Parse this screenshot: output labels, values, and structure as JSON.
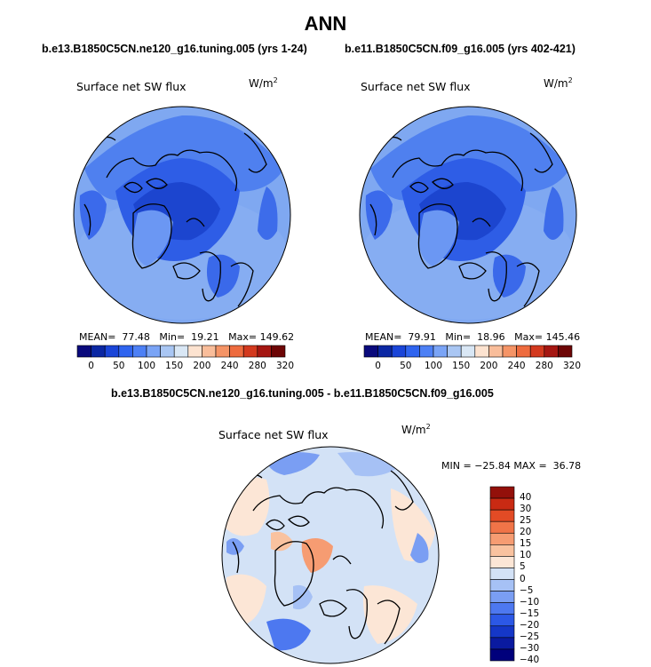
{
  "title": "ANN",
  "colors": {
    "abs_scale": [
      "#0a0a7c",
      "#0b27a3",
      "#1a45d8",
      "#2f64ef",
      "#4d80f5",
      "#7aa4f6",
      "#a9c6f3",
      "#d9e7f5",
      "#fde3d0",
      "#f9bd9a",
      "#f59466",
      "#ee6b3e",
      "#d3391e",
      "#a51611",
      "#6d0505"
    ],
    "diff_scale": [
      "#00007c",
      "#0a1aa0",
      "#1537c8",
      "#2c58e6",
      "#4d78f0",
      "#7a9ef3",
      "#a6c1f5",
      "#d3e2f6",
      "#fce6d6",
      "#f9c29f",
      "#f69c72",
      "#f07448",
      "#e24b25",
      "#c92a13",
      "#93100a"
    ],
    "ocean_abs": "#7fa8f1",
    "coast": "#000000"
  },
  "panels": {
    "left": {
      "case": "b.e13.B1850C5CN.ne120_g16.tuning.005 (yrs 1-24)",
      "label": "Surface net SW flux",
      "units": "W/m",
      "units_exp": "2",
      "mean_label": "MEAN=",
      "mean": "77.48",
      "min_label": "Min=",
      "min": "19.21",
      "max_label": "Max=",
      "max": "149.62"
    },
    "right": {
      "case": "b.e11.B1850C5CN.f09_g16.005 (yrs 402-421)",
      "label": "Surface net SW flux",
      "units": "W/m",
      "units_exp": "2",
      "mean_label": "MEAN=",
      "mean": "79.91",
      "min_label": "Min=",
      "min": "18.96",
      "max_label": "Max=",
      "max": "145.46"
    },
    "diff": {
      "case": "b.e13.B1850C5CN.ne120_g16.tuning.005 - b.e11.B1850C5CN.f09_g16.005",
      "label": "Surface net SW flux",
      "units": "W/m",
      "units_exp": "2",
      "min_label": "MIN =",
      "min": "−25.84",
      "max_label": "MAX =",
      "max": "36.78"
    }
  },
  "chart_data": [
    {
      "type": "heatmap",
      "projection": "polar-stereographic-north",
      "title": "Surface net SW flux",
      "subtitle": "b.e13.B1850C5CN.ne120_g16.tuning.005 (yrs 1-24)",
      "units": "W/m2",
      "stats": {
        "mean": 77.48,
        "min": 19.21,
        "max": 149.62
      },
      "colorbar_ticks": [
        "0",
        "50",
        "100",
        "150",
        "200",
        "240",
        "280",
        "320"
      ]
    },
    {
      "type": "heatmap",
      "projection": "polar-stereographic-north",
      "title": "Surface net SW flux",
      "subtitle": "b.e11.B1850C5CN.f09_g16.005 (yrs 402-421)",
      "units": "W/m2",
      "stats": {
        "mean": 79.91,
        "min": 18.96,
        "max": 145.46
      },
      "colorbar_ticks": [
        "0",
        "50",
        "100",
        "150",
        "200",
        "240",
        "280",
        "320"
      ]
    },
    {
      "type": "heatmap",
      "projection": "polar-stereographic-north",
      "title": "Surface net SW flux",
      "subtitle": "b.e13.B1850C5CN.ne120_g16.tuning.005 - b.e11.B1850C5CN.f09_g16.005",
      "units": "W/m2",
      "stats": {
        "min": -25.84,
        "max": 36.78
      },
      "colorbar_ticks": [
        "40",
        "30",
        "25",
        "20",
        "15",
        "10",
        "5",
        "0",
        "−5",
        "−10",
        "−15",
        "−20",
        "−25",
        "−30",
        "−40"
      ]
    }
  ]
}
